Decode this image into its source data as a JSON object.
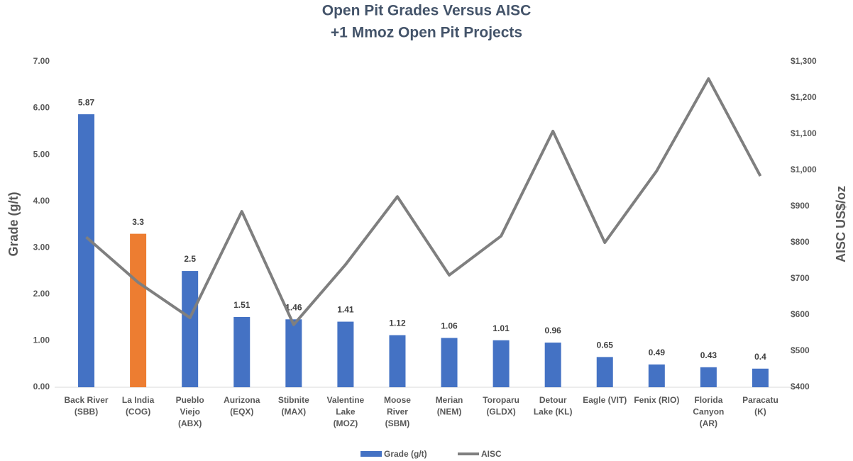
{
  "chart_data": {
    "type": "bar_line",
    "title": [
      "Open Pit Grades Versus AISC",
      "+1 Mmoz Open Pit Projects"
    ],
    "y_label": "Grade (g/t)",
    "y2_label": "AISC US$/oz",
    "categories": [
      "Back River\n(SBB)",
      "La India\n(COG)",
      "Pueblo\nViejo\n(ABX)",
      "Aurizona\n(EQX)",
      "Stibnite\n(MAX)",
      "Valentine\nLake\n(MOZ)",
      "Moose\nRiver\n(SBM)",
      "Merian\n(NEM)",
      "Toroparu\n(GLDX)",
      "Detour\nLake (KL)",
      "Eagle (VIT)",
      "Fenix (RIO)",
      "Florida\nCanyon\n(AR)",
      "Paracatu\n(K)"
    ],
    "series": [
      {
        "name": "Grade (g/t)",
        "color": "#4472c4",
        "axis": "y",
        "colors": [
          "#4472c4",
          "#ed7d31",
          "#4472c4",
          "#4472c4",
          "#4472c4",
          "#4472c4",
          "#4472c4",
          "#4472c4",
          "#4472c4",
          "#4472c4",
          "#4472c4",
          "#4472c4",
          "#4472c4",
          "#4472c4"
        ],
        "values": [
          5.87,
          3.3,
          2.5,
          1.51,
          1.46,
          1.41,
          1.12,
          1.06,
          1.01,
          0.96,
          0.65,
          0.49,
          0.43,
          0.4
        ]
      },
      {
        "name": "AISC",
        "color": "#7f7f7f",
        "axis": "y2",
        "values": [
          815,
          690,
          592,
          886,
          573,
          739,
          927,
          710,
          818,
          1108,
          800,
          998,
          1253,
          984
        ]
      }
    ],
    "ylim": [
      0,
      7
    ],
    "yticks": [
      {
        "value": 0,
        "label": "0.00"
      },
      {
        "value": 1,
        "label": "1.00"
      },
      {
        "value": 2,
        "label": "2.00"
      },
      {
        "value": 3,
        "label": "3.00"
      },
      {
        "value": 4,
        "label": "4.00"
      },
      {
        "value": 5,
        "label": "5.00"
      },
      {
        "value": 6,
        "label": "6.00"
      },
      {
        "value": 7,
        "label": "7.00"
      }
    ],
    "y2lim": [
      400,
      1300
    ],
    "y2ticks": [
      {
        "value": 400,
        "label": "$400"
      },
      {
        "value": 500,
        "label": "$500"
      },
      {
        "value": 600,
        "label": "$600"
      },
      {
        "value": 700,
        "label": "$700"
      },
      {
        "value": 800,
        "label": "$800"
      },
      {
        "value": 900,
        "label": "$900"
      },
      {
        "value": 1000,
        "label": "$1,000"
      },
      {
        "value": 1100,
        "label": "$1,100"
      },
      {
        "value": 1200,
        "label": "$1,200"
      },
      {
        "value": 1300,
        "label": "$1,300"
      }
    ],
    "legend": "bottom",
    "grid": false
  }
}
